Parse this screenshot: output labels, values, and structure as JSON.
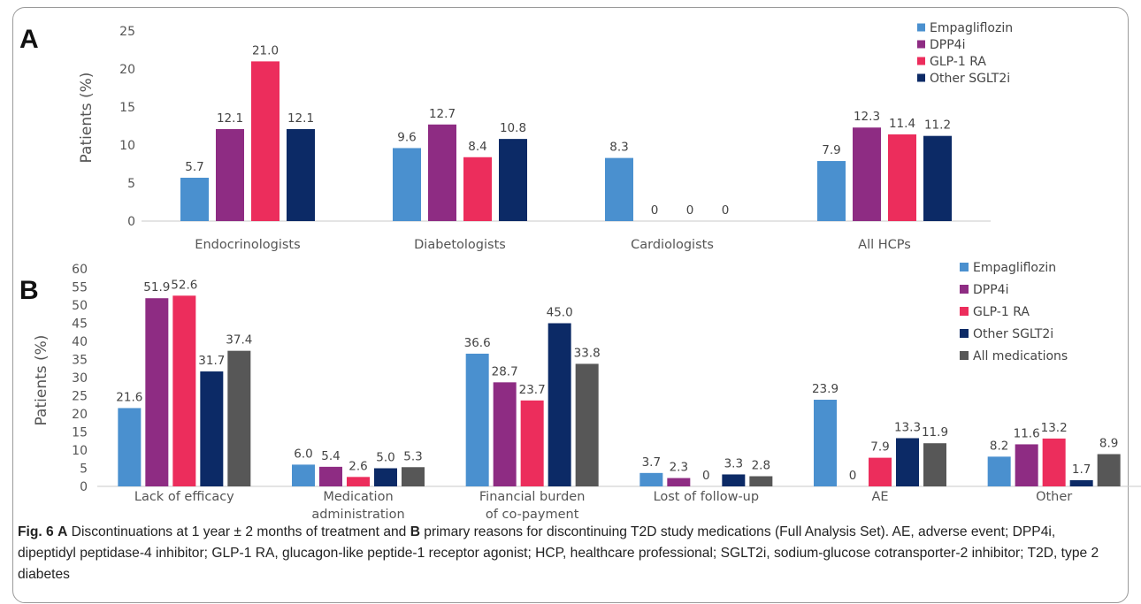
{
  "figure": {
    "caption": {
      "label": "Fig. 6",
      "a_letter": "A",
      "part1": " Discontinuations at 1 year ± 2 months of treatment and ",
      "b_letter": "B",
      "part2": " primary reasons for discontinuing T2D study medications (Full Analysis Set). AE, adverse event; DPP4i, dipeptidyl peptidase-4 inhibitor; GLP-1 RA, glucagon-like peptide-1 receptor agonist; HCP, healthcare professional; SGLT2i, sodium-glucose cotransporter-2 inhibitor; T2D, type 2 diabetes"
    }
  },
  "colors": {
    "Empagliflozin": "#4a90cf",
    "DPP4i": "#8e2c83",
    "GLP-1 RA": "#ec2d5c",
    "Other SGLT2i": "#0c2a66",
    "All medications": "#575757"
  },
  "chart_data": [
    {
      "panel": "A",
      "type": "bar",
      "ylabel": "Patients (%)",
      "ylim": [
        0,
        25
      ],
      "yticks": [
        0,
        5,
        10,
        15,
        20,
        25
      ],
      "categories": [
        "Endocrinologists",
        "Diabetologists",
        "Cardiologists",
        "All HCPs"
      ],
      "legend_position": "top-right",
      "series": [
        {
          "name": "Empagliflozin",
          "values": [
            5.7,
            9.6,
            8.3,
            7.9
          ],
          "labels": [
            "5.7",
            "9.6",
            "8.3",
            "7.9"
          ]
        },
        {
          "name": "DPP4i",
          "values": [
            12.1,
            12.7,
            0,
            12.3
          ],
          "labels": [
            "12.1",
            "12.7",
            "0",
            "12.3"
          ]
        },
        {
          "name": "GLP-1 RA",
          "values": [
            21.0,
            8.4,
            0,
            11.4
          ],
          "labels": [
            "21.0",
            "8.4",
            "0",
            "11.4"
          ]
        },
        {
          "name": "Other SGLT2i",
          "values": [
            12.1,
            10.8,
            0,
            11.2
          ],
          "labels": [
            "12.1",
            "10.8",
            "0",
            "11.2"
          ]
        }
      ]
    },
    {
      "panel": "B",
      "type": "bar",
      "ylabel": "Patients (%)",
      "ylim": [
        0,
        60
      ],
      "yticks": [
        0,
        5,
        10,
        15,
        20,
        25,
        30,
        35,
        40,
        45,
        50,
        55,
        60
      ],
      "categories": [
        [
          "Lack of efficacy"
        ],
        [
          "Medication",
          "administration"
        ],
        [
          "Financial burden",
          "of co-payment"
        ],
        [
          "Lost of follow-up"
        ],
        [
          "AE"
        ],
        [
          "Other"
        ]
      ],
      "legend_position": "top-right",
      "series": [
        {
          "name": "Empagliflozin",
          "values": [
            21.6,
            6.0,
            36.6,
            3.7,
            23.9,
            8.2
          ],
          "labels": [
            "21.6",
            "6.0",
            "36.6",
            "3.7",
            "23.9",
            "8.2"
          ]
        },
        {
          "name": "DPP4i",
          "values": [
            51.9,
            5.4,
            28.7,
            2.3,
            0,
            11.6
          ],
          "labels": [
            "51.9",
            "5.4",
            "28.7",
            "2.3",
            "0",
            "11.6"
          ]
        },
        {
          "name": "GLP-1 RA",
          "values": [
            52.6,
            2.6,
            23.7,
            0,
            7.9,
            13.2
          ],
          "labels": [
            "52.6",
            "2.6",
            "23.7",
            "0",
            "7.9",
            "13.2"
          ]
        },
        {
          "name": "Other SGLT2i",
          "values": [
            31.7,
            5.0,
            45.0,
            3.3,
            13.3,
            1.7
          ],
          "labels": [
            "31.7",
            "5.0",
            "45.0",
            "3.3",
            "13.3",
            "1.7"
          ]
        },
        {
          "name": "All medications",
          "values": [
            37.4,
            5.3,
            33.8,
            2.8,
            11.9,
            8.9
          ],
          "labels": [
            "37.4",
            "5.3",
            "33.8",
            "2.8",
            "11.9",
            "8.9"
          ]
        }
      ]
    }
  ]
}
